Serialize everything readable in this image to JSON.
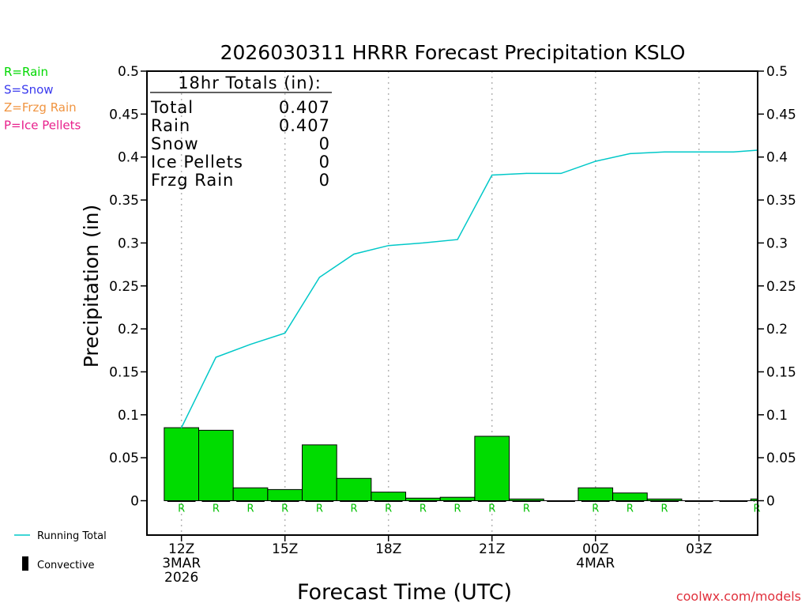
{
  "chart_data": {
    "type": "bar",
    "title": "2026030311 HRRR Forecast Precipitation KSLO",
    "xlabel": "Forecast Time (UTC)",
    "ylabel": "Precipitation (in)",
    "ylim": [
      -0.04,
      0.5
    ],
    "yticks": [
      0,
      0.05,
      0.1,
      0.15,
      0.2,
      0.25,
      0.3,
      0.35,
      0.4,
      0.45,
      0.5
    ],
    "ytick_labels": [
      "0",
      "0.05",
      "0.1",
      "0.15",
      "0.2",
      "0.25",
      "0.3",
      "0.35",
      "0.4",
      "0.45",
      "0.5"
    ],
    "xlim_hours": [
      -1,
      16.7
    ],
    "xticks": [
      {
        "hour": 0,
        "lines": [
          "12Z",
          "3MAR",
          "2026"
        ]
      },
      {
        "hour": 3,
        "lines": [
          "15Z"
        ]
      },
      {
        "hour": 6,
        "lines": [
          "18Z"
        ]
      },
      {
        "hour": 9,
        "lines": [
          "21Z"
        ]
      },
      {
        "hour": 12,
        "lines": [
          "00Z",
          "4MAR"
        ]
      },
      {
        "hour": 15,
        "lines": [
          "03Z"
        ]
      }
    ],
    "bar_hours": [
      0,
      1,
      2,
      3,
      4,
      5,
      6,
      7,
      8,
      9,
      10,
      11,
      12,
      13,
      14,
      15,
      16,
      17
    ],
    "values": [
      0.085,
      0.082,
      0.015,
      0.013,
      0.065,
      0.026,
      0.01,
      0.003,
      0.004,
      0.075,
      0.002,
      0.0,
      0.015,
      0.009,
      0.002,
      0.0,
      0.0,
      0.002
    ],
    "precip_type_labels": [
      "R",
      "R",
      "R",
      "R",
      "R",
      "R",
      "R",
      "R",
      "R",
      "R",
      "R",
      "",
      "R",
      "R",
      "R",
      "",
      "",
      "R"
    ],
    "running_total": {
      "hours": [
        0,
        1,
        2,
        3,
        4,
        5,
        6,
        7,
        8,
        9,
        10,
        11,
        12,
        13,
        14,
        15,
        16,
        17
      ],
      "values": [
        0.085,
        0.167,
        0.182,
        0.195,
        0.26,
        0.287,
        0.297,
        0.3,
        0.304,
        0.379,
        0.381,
        0.381,
        0.395,
        0.404,
        0.406,
        0.406,
        0.406,
        0.408
      ]
    },
    "totals_box": {
      "heading": "18hr Totals (in):",
      "rows": [
        {
          "label": "Total",
          "value": "0.407"
        },
        {
          "label": "Rain",
          "value": "0.407"
        },
        {
          "label": "Snow",
          "value": "0"
        },
        {
          "label": "Ice Pellets",
          "value": "0"
        },
        {
          "label": "Frzg Rain",
          "value": "0"
        }
      ]
    },
    "type_legend": [
      {
        "text": "R=Rain",
        "color": "#00d800"
      },
      {
        "text": "S=Snow",
        "color": "#3a3aee"
      },
      {
        "text": "Z=Frzg Rain",
        "color": "#f09440"
      },
      {
        "text": "P=Ice Pellets",
        "color": "#e8208c"
      }
    ],
    "line_legend": [
      {
        "text": "Running Total",
        "color": "#00c8c8",
        "kind": "line"
      },
      {
        "text": "Convective",
        "color": "#000000",
        "kind": "box"
      }
    ],
    "credit": "coolwx.com/models",
    "colors": {
      "bar": "#00dc00",
      "running_total": "#00c8c8",
      "type_label": "#00c000",
      "credit": "#e0303c",
      "grid": "#b4b4b4"
    }
  }
}
